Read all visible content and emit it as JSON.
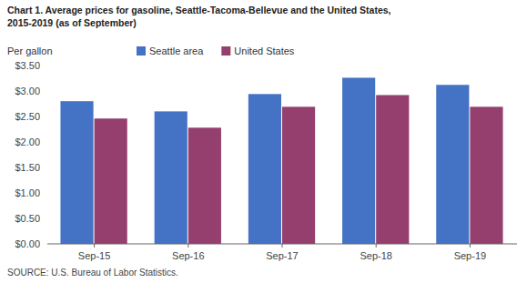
{
  "chart_data": {
    "type": "bar",
    "title": "Chart 1. Average prices for gasoline, Seattle-Tacoma-Bellevue and the United States,\n2015-2019  (as of September)",
    "ylabel": "Per gallon",
    "source": "SOURCE: U.S. Bureau of Labor Statistics.",
    "categories": [
      "Sep-15",
      "Sep-16",
      "Sep-17",
      "Sep-18",
      "Sep-19"
    ],
    "series": [
      {
        "name": "Seattle area",
        "color": "#4472C4",
        "values": [
          2.8,
          2.6,
          2.94,
          3.26,
          3.12
        ]
      },
      {
        "name": "United States",
        "color": "#943F6E",
        "values": [
          2.46,
          2.28,
          2.69,
          2.92,
          2.69
        ]
      }
    ],
    "ylim": [
      0,
      3.5
    ],
    "yticks": [
      {
        "value": 0.0,
        "label": "$0.00"
      },
      {
        "value": 0.5,
        "label": "$0.50"
      },
      {
        "value": 1.0,
        "label": "$1.00"
      },
      {
        "value": 1.5,
        "label": "$1.50"
      },
      {
        "value": 2.0,
        "label": "$2.00"
      },
      {
        "value": 2.5,
        "label": "$2.50"
      },
      {
        "value": 3.0,
        "label": "$3.00"
      },
      {
        "value": 3.5,
        "label": "$3.50"
      }
    ],
    "grid": false,
    "legend": "top"
  }
}
